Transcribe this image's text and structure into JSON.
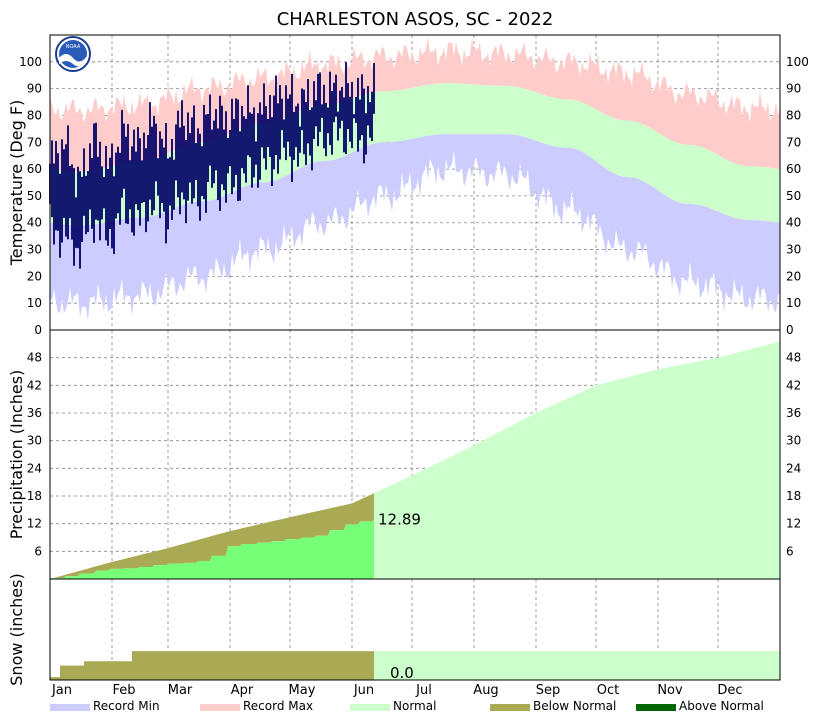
{
  "chart_data": {
    "type": "area",
    "title": "CHARLESTON   ASOS, SC - 2022",
    "months": [
      "Jan",
      "Feb",
      "Mar",
      "Apr",
      "May",
      "Jun",
      "Jul",
      "Aug",
      "Sep",
      "Oct",
      "Nov",
      "Dec"
    ],
    "legend": [
      {
        "label": "Record Min",
        "color": "#ccccff"
      },
      {
        "label": "Record Max",
        "color": "#ffcccc"
      },
      {
        "label": "Normal",
        "color": "#ccffcc"
      },
      {
        "label": "Below Normal",
        "color": "#aaaa55"
      },
      {
        "label": "Above Normal",
        "color": "#006600"
      }
    ],
    "colors": {
      "record_min": "#ccccff",
      "record_max": "#ffcccc",
      "normal": "#ccffcc",
      "below_normal": "#aaaa55",
      "above_normal": "#006600",
      "observed_precip": "#77ff77",
      "observed_temp": "#000066"
    },
    "logo_text": "NOAA",
    "panels": {
      "temperature": {
        "ylabel": "Temperature (Deg F)",
        "ylim": [
          0,
          110
        ],
        "yticks": [
          0,
          10,
          20,
          30,
          40,
          50,
          60,
          70,
          80,
          90,
          100
        ],
        "normal_high_monthly": [
          59,
          63,
          70,
          77,
          84,
          89,
          92,
          91,
          86,
          78,
          69,
          61
        ],
        "normal_low_monthly": [
          39,
          42,
          48,
          55,
          63,
          70,
          73,
          73,
          68,
          57,
          47,
          41
        ],
        "record_max_monthly": [
          82,
          84,
          90,
          94,
          99,
          102,
          104,
          103,
          100,
          96,
          88,
          83
        ],
        "record_min_monthly": [
          10,
          13,
          20,
          30,
          40,
          50,
          60,
          58,
          45,
          30,
          18,
          12
        ],
        "observed_through": "Jun 12",
        "observed_daily_high_low_weekly": [
          [
            62,
            38
          ],
          [
            70,
            35
          ],
          [
            55,
            30
          ],
          [
            72,
            42
          ],
          [
            60,
            33
          ],
          [
            75,
            45
          ],
          [
            68,
            40
          ],
          [
            78,
            48
          ],
          [
            66,
            41
          ],
          [
            80,
            50
          ],
          [
            74,
            47
          ],
          [
            82,
            54
          ],
          [
            78,
            52
          ],
          [
            83,
            56
          ],
          [
            80,
            60
          ],
          [
            86,
            62
          ],
          [
            88,
            66
          ],
          [
            84,
            64
          ],
          [
            90,
            70
          ],
          [
            89,
            72
          ],
          [
            91,
            73
          ],
          [
            88,
            70
          ],
          [
            90,
            72
          ]
        ]
      },
      "precipitation": {
        "ylabel": "Precipitation (Inches)",
        "ylim": [
          0,
          54
        ],
        "yticks": [
          6,
          12,
          18,
          24,
          30,
          36,
          42,
          48
        ],
        "normal_cumulative_monthly_end": [
          3.7,
          6.7,
          10.4,
          13.4,
          16.4,
          22.4,
          29.0,
          36.0,
          42.0,
          45.5,
          48.0,
          51.5
        ],
        "observed_cumulative_weekly": [
          0.2,
          0.6,
          1.2,
          1.8,
          2.2,
          2.3,
          2.6,
          3.0,
          3.3,
          3.5,
          3.9,
          5.0,
          7.1,
          7.6,
          7.9,
          8.2,
          8.6,
          9.0,
          9.4,
          10.6,
          11.8,
          12.5,
          12.89
        ],
        "current_total_label": "12.89"
      },
      "snow": {
        "ylabel": "Snow (inches)",
        "ylim": [
          0,
          0.7
        ],
        "normal_seasonal": 0.2,
        "below_normal_steps": [
          0.02,
          0.1,
          0.13,
          0.2
        ],
        "observed_total_label": "0.0"
      }
    }
  }
}
